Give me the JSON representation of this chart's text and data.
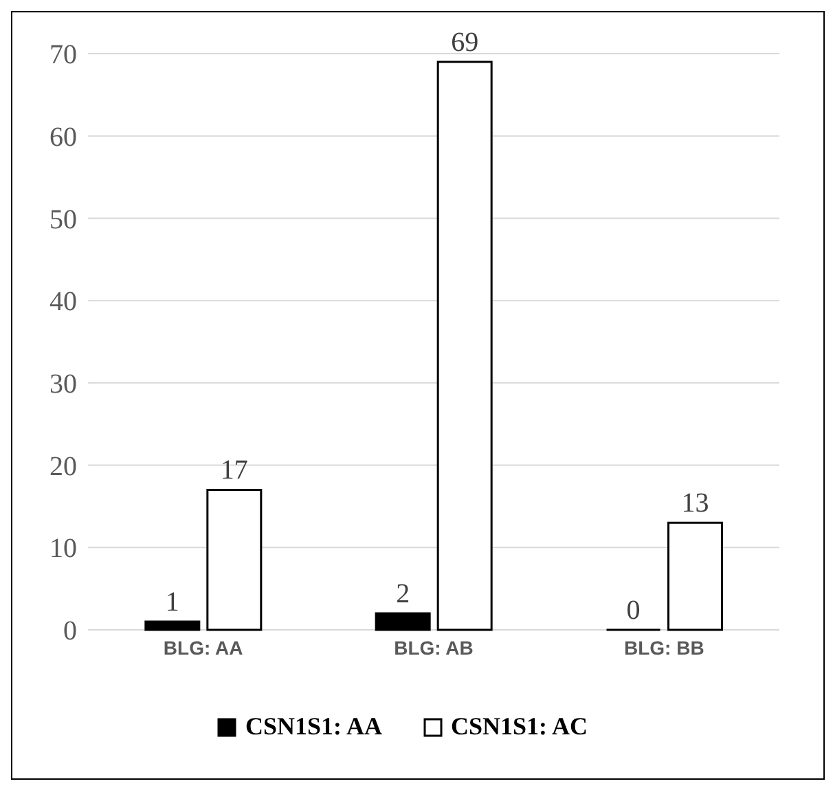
{
  "chart_data": {
    "type": "bar",
    "categories": [
      "BLG: AA",
      "BLG: AB",
      "BLG: BB"
    ],
    "series": [
      {
        "name": "CSN1S1: AA",
        "color": "#000000",
        "values": [
          1,
          2,
          0
        ]
      },
      {
        "name": "CSN1S1: AC",
        "color": "#ffffff",
        "values": [
          17,
          69,
          13
        ]
      }
    ],
    "ylim": [
      0,
      70
    ],
    "yticks": [
      0,
      10,
      20,
      30,
      40,
      50,
      60,
      70
    ],
    "grid": "y",
    "legend": "bottom",
    "data_labels": true
  }
}
